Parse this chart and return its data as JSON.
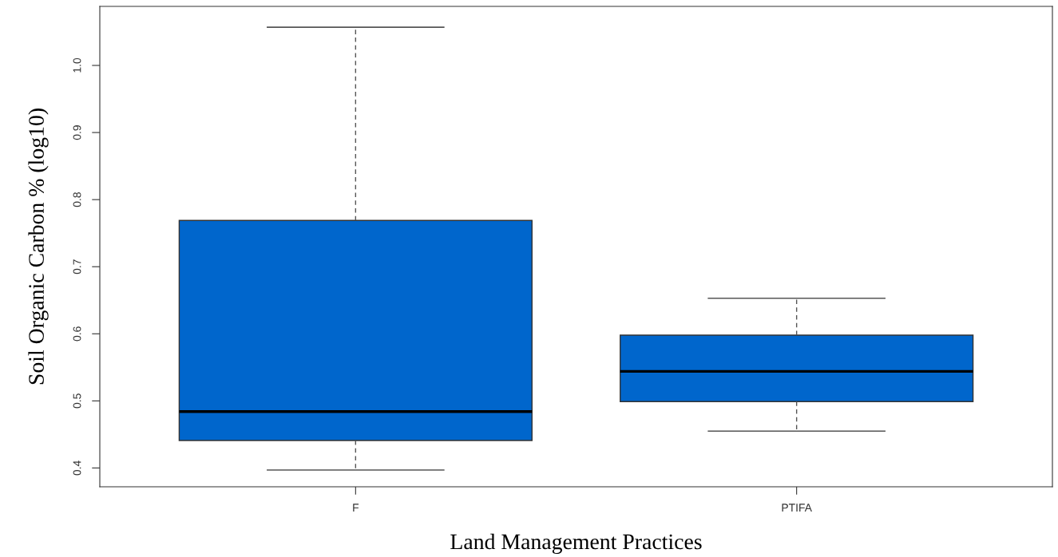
{
  "chart_data": {
    "type": "box",
    "xlabel": "Land Management Practices",
    "ylabel": "Soil Organic Carbon % (log10)",
    "categories": [
      "F",
      "PTIFA"
    ],
    "boxes": [
      {
        "low": 0.397,
        "q1": 0.441,
        "median": 0.484,
        "q3": 0.769,
        "high": 1.057
      },
      {
        "low": 0.455,
        "q1": 0.499,
        "median": 0.544,
        "q3": 0.598,
        "high": 0.653
      }
    ],
    "color": "#0066cc",
    "ylim": [
      0.372,
      1.088
    ],
    "yticks": [
      0.4,
      0.5,
      0.6,
      0.7,
      0.8,
      0.9,
      {
        "value": 1.0,
        "label": "1.0"
      }
    ],
    "grid": false,
    "line_style": "dashed"
  }
}
